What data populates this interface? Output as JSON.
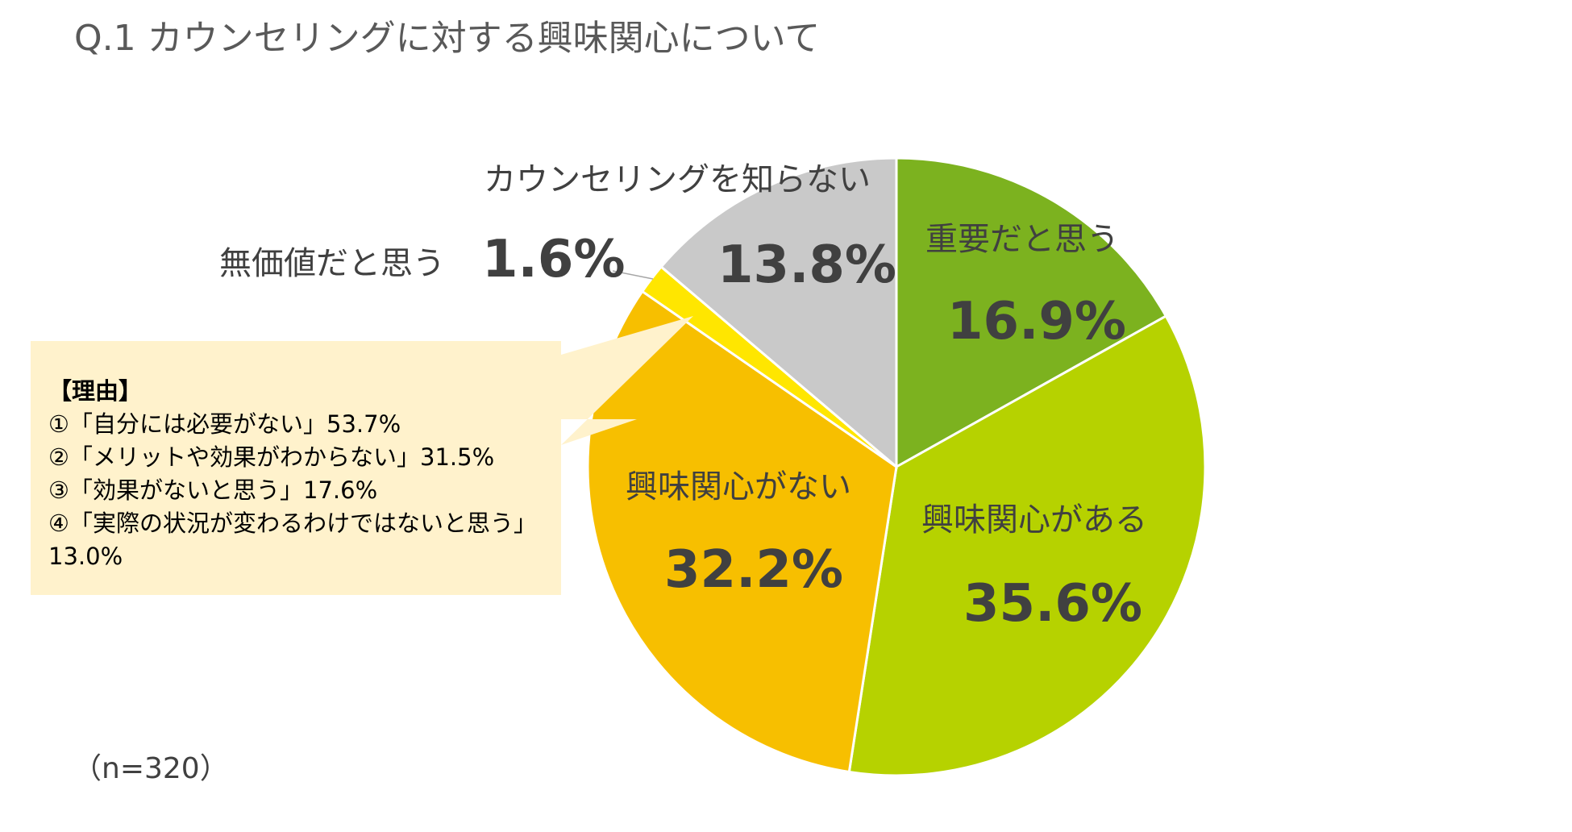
{
  "chart_data": {
    "type": "pie",
    "title": "Q.1 カウンセリングに対する興味関心について",
    "sample_size": "（n=320）",
    "slices": [
      {
        "label": "重要だと思う",
        "value": 16.9,
        "display": "16.9%",
        "color": "#7cb21f"
      },
      {
        "label": "興味関心がある",
        "value": 35.6,
        "display": "35.6%",
        "color": "#b6d200"
      },
      {
        "label": "興味関心がない",
        "value": 32.2,
        "display": "32.2%",
        "color": "#f7bf00"
      },
      {
        "label": "無価値だと思う",
        "value": 1.6,
        "display": "1.6%",
        "color": "#ffe600"
      },
      {
        "label": "カウンセリングを知らない",
        "value": 13.8,
        "display": "13.8%",
        "color": "#c9c9c9"
      }
    ],
    "start": "12 o'clock",
    "direction": "clockwise"
  },
  "callout": {
    "title": "【理由】",
    "lines": [
      "①「自分には必要がない」53.7%",
      "②「メリットや効果がわからない」31.5%",
      "③「効果がないと思う」17.6%",
      "④「実際の状況が変わるわけではないと思う」13.0%"
    ]
  }
}
